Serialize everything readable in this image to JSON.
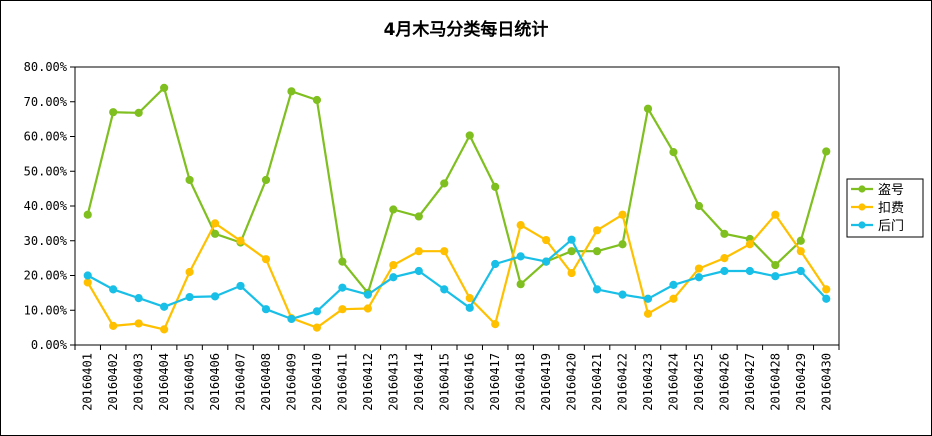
{
  "chart_data": {
    "type": "line",
    "title": "4月木马分类每日统计",
    "xlabel": "",
    "ylabel": "",
    "ylim": [
      0,
      80
    ],
    "y_ticks": [
      "0.00%",
      "10.00%",
      "20.00%",
      "30.00%",
      "40.00%",
      "50.00%",
      "60.00%",
      "70.00%",
      "80.00%"
    ],
    "grid": false,
    "legend_position": "right",
    "categories": [
      "20160401",
      "20160402",
      "20160403",
      "20160404",
      "20160405",
      "20160406",
      "20160407",
      "20160408",
      "20160409",
      "20160410",
      "20160411",
      "20160412",
      "20160413",
      "20160414",
      "20160415",
      "20160416",
      "20160417",
      "20160418",
      "20160419",
      "20160420",
      "20160421",
      "20160422",
      "20160423",
      "20160424",
      "20160425",
      "20160426",
      "20160427",
      "20160428",
      "20160429",
      "20160430"
    ],
    "series": [
      {
        "name": "盗号",
        "color": "#7fbf1f",
        "values": [
          37.5,
          67.0,
          66.8,
          74.0,
          47.5,
          32.0,
          29.5,
          47.5,
          73.0,
          70.5,
          24.0,
          15.0,
          39.0,
          37.0,
          46.5,
          60.3,
          45.5,
          17.5,
          24.0,
          27.0,
          27.0,
          29.0,
          68.0,
          55.5,
          40.0,
          32.0,
          30.5,
          23.0,
          30.0,
          55.7
        ]
      },
      {
        "name": "扣费",
        "color": "#ffc000",
        "values": [
          18.0,
          5.5,
          6.2,
          4.5,
          21.0,
          35.0,
          30.0,
          24.7,
          7.7,
          5.0,
          10.3,
          10.5,
          23.0,
          27.0,
          27.0,
          13.5,
          6.0,
          34.5,
          30.2,
          20.7,
          33.0,
          37.5,
          9.0,
          13.3,
          22.0,
          25.0,
          29.0,
          37.5,
          27.0,
          16.0
        ]
      },
      {
        "name": "后门",
        "color": "#19bfe6",
        "values": [
          20.0,
          16.0,
          13.5,
          11.0,
          13.8,
          14.0,
          17.0,
          10.3,
          7.5,
          9.7,
          16.5,
          14.5,
          19.5,
          21.3,
          16.0,
          10.7,
          23.3,
          25.5,
          24.0,
          30.3,
          16.0,
          14.5,
          13.3,
          17.3,
          19.5,
          21.3,
          21.3,
          19.8,
          21.3,
          13.3
        ]
      }
    ]
  }
}
